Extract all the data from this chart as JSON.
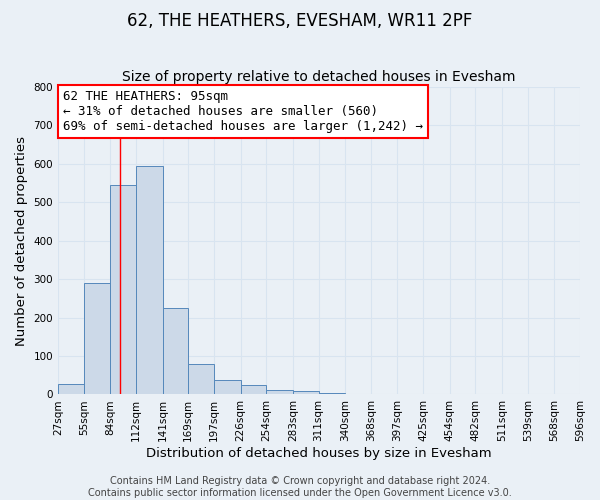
{
  "title": "62, THE HEATHERS, EVESHAM, WR11 2PF",
  "subtitle": "Size of property relative to detached houses in Evesham",
  "xlabel": "Distribution of detached houses by size in Evesham",
  "ylabel": "Number of detached properties",
  "footer_line1": "Contains HM Land Registry data © Crown copyright and database right 2024.",
  "footer_line2": "Contains public sector information licensed under the Open Government Licence v3.0.",
  "bin_labels": [
    "27sqm",
    "55sqm",
    "84sqm",
    "112sqm",
    "141sqm",
    "169sqm",
    "197sqm",
    "226sqm",
    "254sqm",
    "283sqm",
    "311sqm",
    "340sqm",
    "368sqm",
    "397sqm",
    "425sqm",
    "454sqm",
    "482sqm",
    "511sqm",
    "539sqm",
    "568sqm",
    "596sqm"
  ],
  "bar_heights": [
    28,
    290,
    545,
    595,
    225,
    78,
    37,
    25,
    12,
    8,
    5,
    0,
    0,
    0,
    0,
    0,
    0,
    0,
    0,
    0
  ],
  "bin_edges": [
    27,
    55,
    84,
    112,
    141,
    169,
    197,
    226,
    254,
    283,
    311,
    340,
    368,
    397,
    425,
    454,
    482,
    511,
    539,
    568,
    596
  ],
  "bar_color": "#ccd9e8",
  "bar_edgecolor": "#5588bb",
  "property_line_x": 95,
  "property_line_color": "red",
  "annotation_line1": "62 THE HEATHERS: 95sqm",
  "annotation_line2": "← 31% of detached houses are smaller (560)",
  "annotation_line3": "69% of semi-detached houses are larger (1,242) →",
  "ylim": [
    0,
    800
  ],
  "yticks": [
    0,
    100,
    200,
    300,
    400,
    500,
    600,
    700,
    800
  ],
  "background_color": "#eaf0f6",
  "grid_color": "#d8e4f0",
  "title_fontsize": 12,
  "subtitle_fontsize": 10,
  "axis_label_fontsize": 9.5,
  "tick_fontsize": 7.5,
  "annotation_fontsize": 9,
  "footer_fontsize": 7
}
